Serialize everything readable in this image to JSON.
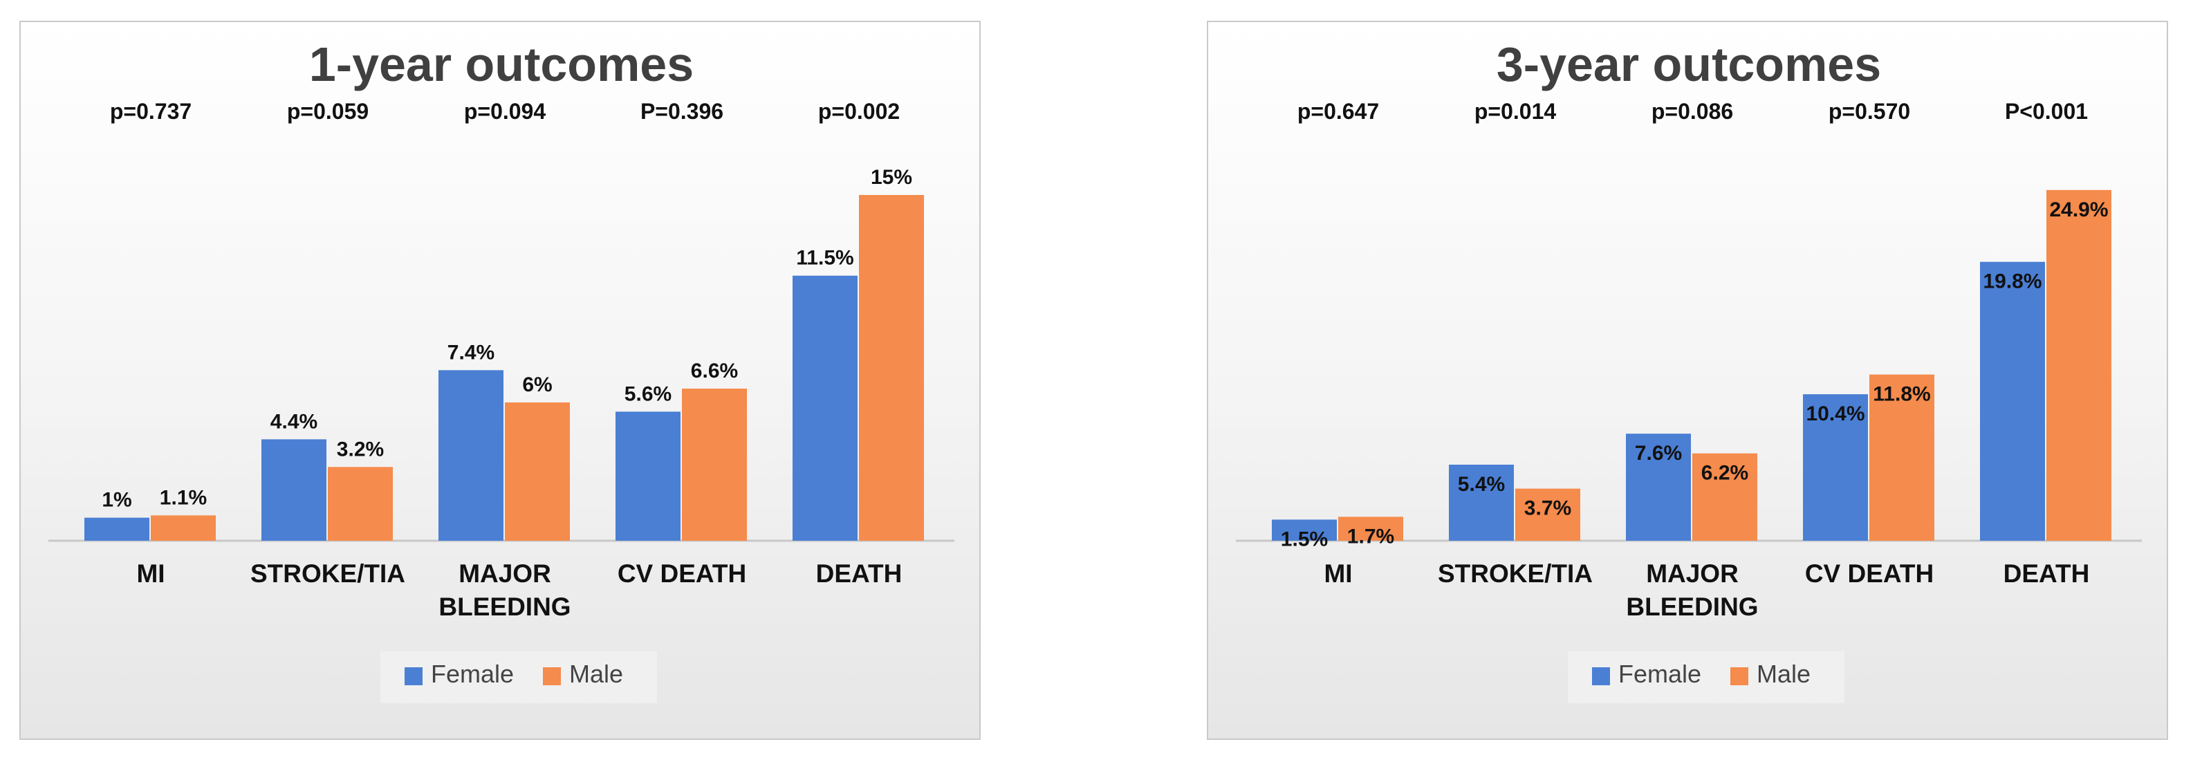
{
  "chart_data": [
    {
      "type": "bar",
      "title": "1-year outcomes",
      "categories": [
        "MI",
        "STROKE/TIA",
        "MAJOR BLEEDING",
        "CV DEATH",
        "DEATH"
      ],
      "category_lines": [
        [
          "MI"
        ],
        [
          "STROKE/TIA"
        ],
        [
          "MAJOR",
          "BLEEDING"
        ],
        [
          "CV DEATH"
        ],
        [
          "DEATH"
        ]
      ],
      "p_values": [
        "p=0.737",
        "p=0.059",
        "p=0.094",
        "P=0.396",
        "p=0.002"
      ],
      "series": [
        {
          "name": "Female",
          "values": [
            1.0,
            4.4,
            7.4,
            5.6,
            11.5
          ],
          "labels": [
            "1%",
            "4.4%",
            "7.4%",
            "5.6%",
            "11.5%"
          ],
          "color": "#4a7fd4"
        },
        {
          "name": "Male",
          "values": [
            1.1,
            3.2,
            6.0,
            6.6,
            15.0
          ],
          "labels": [
            "1.1%",
            "3.2%",
            "6%",
            "6.6%",
            "15%"
          ],
          "color": "#f58b4c"
        }
      ],
      "label_position": "above",
      "ylim": [
        0,
        16.5
      ],
      "grid": false,
      "legend_position": "bottom"
    },
    {
      "type": "bar",
      "title": "3-year outcomes",
      "categories": [
        "MI",
        "STROKE/TIA",
        "MAJOR BLEEDING",
        "CV DEATH",
        "DEATH"
      ],
      "category_lines": [
        [
          "MI"
        ],
        [
          "STROKE/TIA"
        ],
        [
          "MAJOR",
          "BLEEDING"
        ],
        [
          "CV DEATH"
        ],
        [
          "DEATH"
        ]
      ],
      "p_values": [
        "p=0.647",
        "p=0.014",
        "p=0.086",
        "p=0.570",
        "P<0.001"
      ],
      "series": [
        {
          "name": "Female",
          "values": [
            1.5,
            5.4,
            7.6,
            10.4,
            19.8
          ],
          "labels": [
            "1.5%",
            "5.4%",
            "7.6%",
            "10.4%",
            "19.8%"
          ],
          "color": "#4a7fd4"
        },
        {
          "name": "Male",
          "values": [
            1.7,
            3.7,
            6.2,
            11.8,
            24.9
          ],
          "labels": [
            "1.7%",
            "3.7%",
            "6.2%",
            "11.8%",
            "24.9%"
          ],
          "color": "#f58b4c"
        }
      ],
      "label_position": "inside",
      "ylim": [
        0,
        27
      ],
      "grid": false,
      "legend_position": "bottom"
    }
  ]
}
